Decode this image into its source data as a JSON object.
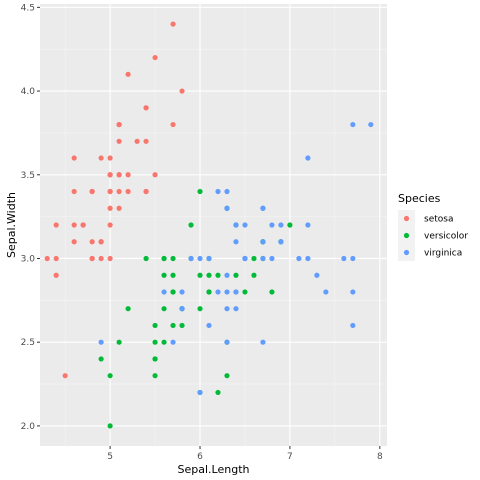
{
  "chart_data": {
    "type": "scatter",
    "xlabel": "Sepal.Length",
    "ylabel": "Sepal.Width",
    "xlim": [
      4.22,
      8.08
    ],
    "ylim": [
      1.88,
      4.52
    ],
    "x_ticks": [
      5,
      6,
      7,
      8
    ],
    "x_tick_labels": [
      "5",
      "6",
      "7",
      "8"
    ],
    "y_ticks": [
      2.0,
      2.5,
      3.0,
      3.5,
      4.0,
      4.5
    ],
    "y_tick_labels": [
      "2.0",
      "2.5",
      "3.0",
      "3.5",
      "4.0",
      "4.5"
    ],
    "grid": true,
    "panel_background": "#ebebeb",
    "legend": {
      "title": "Species",
      "placement": "right"
    },
    "series": [
      {
        "name": "setosa",
        "color": "#F8766D",
        "points": [
          [
            5.1,
            3.5
          ],
          [
            4.9,
            3.0
          ],
          [
            4.7,
            3.2
          ],
          [
            4.6,
            3.1
          ],
          [
            5.0,
            3.6
          ],
          [
            5.4,
            3.9
          ],
          [
            4.6,
            3.4
          ],
          [
            5.0,
            3.4
          ],
          [
            4.4,
            2.9
          ],
          [
            4.9,
            3.1
          ],
          [
            5.4,
            3.7
          ],
          [
            4.8,
            3.4
          ],
          [
            4.8,
            3.0
          ],
          [
            4.3,
            3.0
          ],
          [
            5.8,
            4.0
          ],
          [
            5.7,
            4.4
          ],
          [
            5.4,
            3.9
          ],
          [
            5.1,
            3.5
          ],
          [
            5.7,
            3.8
          ],
          [
            5.1,
            3.8
          ],
          [
            5.4,
            3.4
          ],
          [
            5.1,
            3.7
          ],
          [
            4.6,
            3.6
          ],
          [
            5.1,
            3.3
          ],
          [
            4.8,
            3.4
          ],
          [
            5.0,
            3.0
          ],
          [
            5.0,
            3.4
          ],
          [
            5.2,
            3.5
          ],
          [
            5.2,
            3.4
          ],
          [
            4.7,
            3.2
          ],
          [
            4.8,
            3.1
          ],
          [
            5.4,
            3.4
          ],
          [
            5.2,
            4.1
          ],
          [
            5.5,
            4.2
          ],
          [
            4.9,
            3.1
          ],
          [
            5.0,
            3.2
          ],
          [
            5.5,
            3.5
          ],
          [
            4.9,
            3.6
          ],
          [
            4.4,
            3.0
          ],
          [
            5.1,
            3.4
          ],
          [
            5.0,
            3.5
          ],
          [
            4.5,
            2.3
          ],
          [
            4.4,
            3.2
          ],
          [
            5.0,
            3.5
          ],
          [
            5.1,
            3.8
          ],
          [
            4.8,
            3.0
          ],
          [
            5.1,
            3.8
          ],
          [
            4.6,
            3.2
          ],
          [
            5.3,
            3.7
          ],
          [
            5.0,
            3.3
          ]
        ]
      },
      {
        "name": "versicolor",
        "color": "#00BA38",
        "points": [
          [
            7.0,
            3.2
          ],
          [
            6.4,
            3.2
          ],
          [
            6.9,
            3.1
          ],
          [
            5.5,
            2.3
          ],
          [
            6.5,
            2.8
          ],
          [
            5.7,
            2.8
          ],
          [
            6.3,
            3.3
          ],
          [
            4.9,
            2.4
          ],
          [
            6.6,
            2.9
          ],
          [
            5.2,
            2.7
          ],
          [
            5.0,
            2.0
          ],
          [
            5.9,
            3.0
          ],
          [
            6.0,
            2.2
          ],
          [
            6.1,
            2.9
          ],
          [
            5.6,
            2.9
          ],
          [
            6.7,
            3.1
          ],
          [
            5.6,
            3.0
          ],
          [
            5.8,
            2.7
          ],
          [
            6.2,
            2.2
          ],
          [
            5.6,
            2.5
          ],
          [
            5.9,
            3.2
          ],
          [
            6.1,
            2.8
          ],
          [
            6.3,
            2.5
          ],
          [
            6.1,
            2.8
          ],
          [
            6.4,
            2.9
          ],
          [
            6.6,
            3.0
          ],
          [
            6.8,
            2.8
          ],
          [
            6.7,
            3.0
          ],
          [
            6.0,
            2.9
          ],
          [
            5.7,
            2.6
          ],
          [
            5.5,
            2.4
          ],
          [
            5.5,
            2.4
          ],
          [
            5.8,
            2.7
          ],
          [
            6.0,
            2.7
          ],
          [
            5.4,
            3.0
          ],
          [
            6.0,
            3.4
          ],
          [
            6.7,
            3.1
          ],
          [
            6.3,
            2.3
          ],
          [
            5.6,
            3.0
          ],
          [
            5.5,
            2.5
          ],
          [
            5.5,
            2.6
          ],
          [
            6.1,
            3.0
          ],
          [
            5.8,
            2.6
          ],
          [
            5.0,
            2.3
          ],
          [
            5.6,
            2.7
          ],
          [
            5.7,
            3.0
          ],
          [
            5.7,
            2.9
          ],
          [
            6.2,
            2.9
          ],
          [
            5.1,
            2.5
          ],
          [
            5.7,
            2.8
          ]
        ]
      },
      {
        "name": "virginica",
        "color": "#619CFF",
        "points": [
          [
            6.3,
            3.3
          ],
          [
            5.8,
            2.7
          ],
          [
            7.1,
            3.0
          ],
          [
            6.3,
            2.9
          ],
          [
            6.5,
            3.0
          ],
          [
            7.6,
            3.0
          ],
          [
            4.9,
            2.5
          ],
          [
            7.3,
            2.9
          ],
          [
            6.7,
            2.5
          ],
          [
            7.2,
            3.6
          ],
          [
            6.5,
            3.2
          ],
          [
            6.4,
            2.7
          ],
          [
            6.8,
            3.0
          ],
          [
            5.7,
            2.5
          ],
          [
            5.8,
            2.8
          ],
          [
            6.4,
            3.2
          ],
          [
            6.5,
            3.0
          ],
          [
            7.7,
            3.8
          ],
          [
            7.7,
            2.6
          ],
          [
            6.0,
            2.2
          ],
          [
            6.9,
            3.2
          ],
          [
            5.6,
            2.8
          ],
          [
            7.7,
            2.8
          ],
          [
            6.3,
            2.7
          ],
          [
            6.7,
            3.3
          ],
          [
            7.2,
            3.2
          ],
          [
            6.2,
            2.8
          ],
          [
            6.1,
            3.0
          ],
          [
            6.4,
            2.8
          ],
          [
            7.2,
            3.0
          ],
          [
            7.4,
            2.8
          ],
          [
            7.9,
            3.8
          ],
          [
            6.4,
            2.8
          ],
          [
            6.3,
            2.8
          ],
          [
            6.1,
            2.6
          ],
          [
            7.7,
            3.0
          ],
          [
            6.3,
            3.4
          ],
          [
            6.4,
            3.1
          ],
          [
            6.0,
            3.0
          ],
          [
            6.9,
            3.1
          ],
          [
            6.7,
            3.1
          ],
          [
            6.9,
            3.1
          ],
          [
            5.8,
            2.7
          ],
          [
            6.8,
            3.2
          ],
          [
            6.7,
            3.3
          ],
          [
            6.7,
            3.0
          ],
          [
            6.3,
            2.5
          ],
          [
            6.5,
            3.0
          ],
          [
            6.2,
            3.4
          ],
          [
            5.9,
            3.0
          ]
        ]
      }
    ]
  }
}
